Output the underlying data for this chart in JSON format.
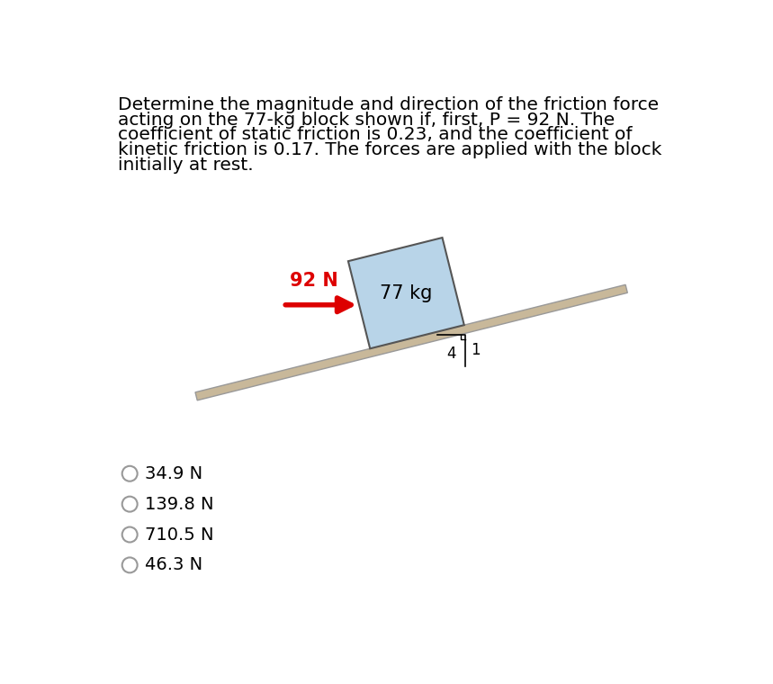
{
  "title_lines": [
    "Determine the magnitude and direction of the friction force",
    "acting on the 77-kg block shown if, first, P = 92 N. The",
    "coefficient of static friction is 0.23, and the coefficient of",
    "kinetic friction is 0.17. The forces are applied with the block",
    "initially at rest."
  ],
  "background_color": "#ffffff",
  "choices": [
    "34.9 N",
    "139.8 N",
    "710.5 N",
    "46.3 N"
  ],
  "force_label": "92 N",
  "force_color": "#dd0000",
  "block_label": "77 kg",
  "block_fill": "#b8d4e8",
  "block_edge": "#555555",
  "slope_fill": "#c8b89a",
  "slope_edge": "#999999",
  "tri_label_horiz": "4",
  "tri_label_vert": "1"
}
